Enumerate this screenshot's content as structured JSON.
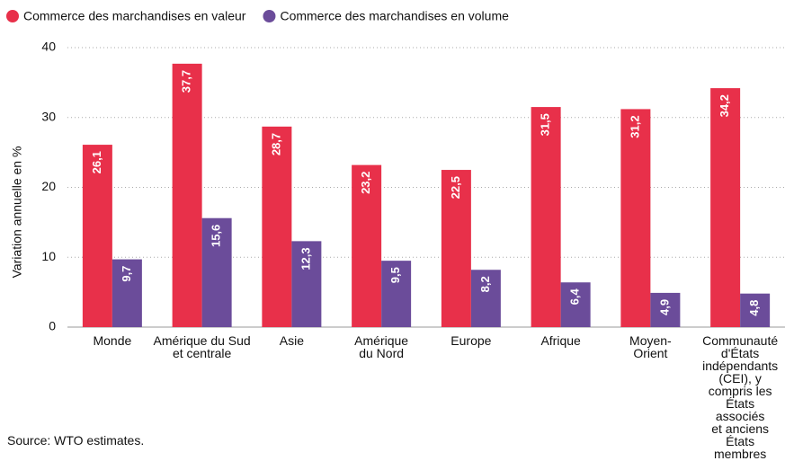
{
  "chart_data": {
    "type": "bar",
    "categories": [
      "Monde",
      "Amérique du Sud\net centrale",
      "Asie",
      "Amérique\ndu Nord",
      "Europe",
      "Afrique",
      "Moyen-\nOrient",
      "Communauté\nd'États\nindépendants\n(CEI), y\ncompris les\nÉtats associés\net anciens\nÉtats membres"
    ],
    "series": [
      {
        "name": "Commerce des marchandises en valeur",
        "color": "#e8304a",
        "values": [
          26.1,
          37.7,
          28.7,
          23.2,
          22.5,
          31.5,
          31.2,
          34.2
        ],
        "value_labels": [
          "26,1",
          "37,7",
          "28,7",
          "23,2",
          "22,5",
          "31,5",
          "31,2",
          "34,2"
        ]
      },
      {
        "name": "Commerce des marchandises en volume",
        "color": "#6b4c9a",
        "values": [
          9.7,
          15.6,
          12.3,
          9.5,
          8.2,
          6.4,
          4.9,
          4.8
        ],
        "value_labels": [
          "9,7",
          "15,6",
          "12,3",
          "9,5",
          "8,2",
          "6,4",
          "4,9",
          "4,8"
        ]
      }
    ],
    "ylabel": "Variation annuelle en %",
    "ylim": [
      0,
      40
    ],
    "yticks": [
      0,
      10,
      20,
      30,
      40
    ],
    "grid": true,
    "source": "Source: WTO estimates."
  }
}
